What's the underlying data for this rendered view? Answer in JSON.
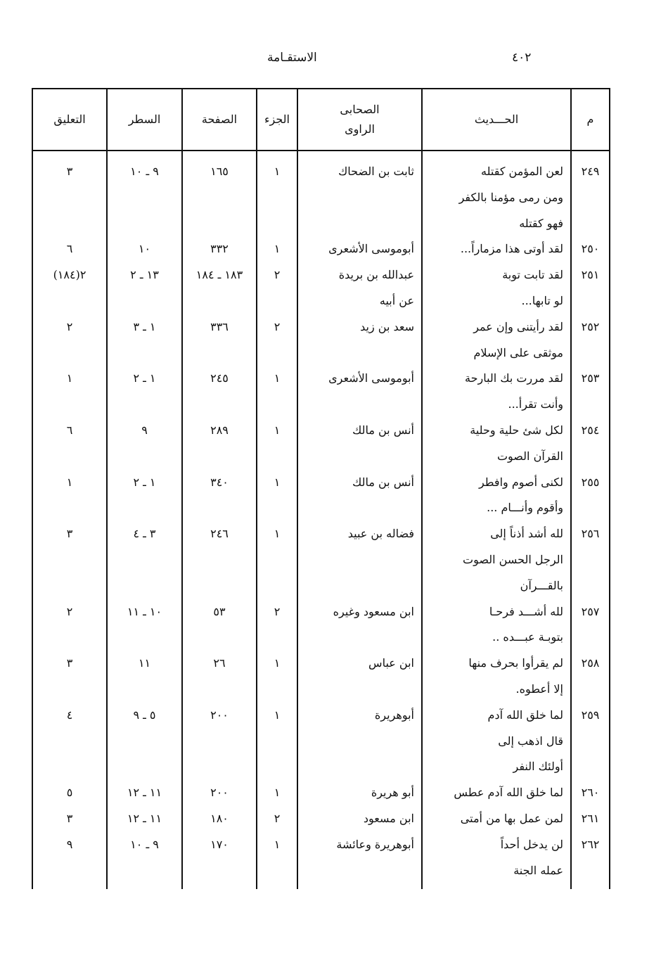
{
  "page": {
    "number": "٤٠٢",
    "title": "الاستقـامة"
  },
  "table": {
    "headers": [
      "م",
      "الحـــديث",
      "الصحابى الراوى",
      "الجزء",
      "الصفحة",
      "السطر",
      "التعليق"
    ],
    "rows": [
      {
        "num": "٢٤٩",
        "hadith": [
          "لعن المؤمن كقتله",
          "ومن رمى مؤمنا بالكفر",
          "فهو كقتله"
        ],
        "narrator": [
          "ثابت بن الضحاك"
        ],
        "part": "١",
        "page": "١٦٥",
        "line": "٩ ـ ١٠",
        "note": "٣"
      },
      {
        "num": "٢٥٠",
        "hadith": [
          "لقد أوتى هذا مزماراً..."
        ],
        "narrator": [
          "أبوموسى الأشعرى"
        ],
        "part": "١",
        "page": "٣٣٢",
        "line": "١٠",
        "note": "٦"
      },
      {
        "num": "٢٥١",
        "hadith": [
          "لقد تابت توبة",
          "لو تابها..."
        ],
        "narrator": [
          "عبدالله بن بريدة",
          "عن أبيه"
        ],
        "part": "٢",
        "page": "١٨٣ ـ ١٨٤",
        "line": "١٣ ـ ٢",
        "note": "٢(١٨٤)"
      },
      {
        "num": "٢٥٢",
        "hadith": [
          "لقد رأيتنى وإن عمر",
          "موثقى على الإسلام"
        ],
        "narrator": [
          "سعد بن زيد"
        ],
        "part": "٢",
        "page": "٣٣٦",
        "line": "١ ـ ٣",
        "note": "٢"
      },
      {
        "num": "٢٥٣",
        "hadith": [
          "لقد مررت بك البارحة",
          "وأنت تقرأ..."
        ],
        "narrator": [
          "أبوموسى الأشعرى"
        ],
        "part": "١",
        "page": "٢٤٥",
        "line": "١ ـ ٢",
        "note": "١"
      },
      {
        "num": "٢٥٤",
        "hadith": [
          "لكل شئ حلية وحلية",
          "القرآن الصوت"
        ],
        "narrator": [
          "أنس بن مالك"
        ],
        "part": "١",
        "page": "٢٨٩",
        "line": "٩",
        "note": "٦"
      },
      {
        "num": "٢٥٥",
        "hadith": [
          "لكنى أصوم وافطر",
          "وأقوم وأنـــام ..."
        ],
        "narrator": [
          "أنس بن مالك"
        ],
        "part": "١",
        "page": "٣٤٠",
        "line": "١ ـ ٢",
        "note": "١"
      },
      {
        "num": "٢٥٦",
        "hadith": [
          "لله أشد أذناً إلى",
          "الرجل الحسن الصوت",
          "بالقـــرآن"
        ],
        "narrator": [
          "فضاله بن عبيد"
        ],
        "part": "١",
        "page": "٢٤٦",
        "line": "٣ ـ ٤",
        "note": "٣"
      },
      {
        "num": "٢٥٧",
        "hadith": [
          "لله أشـــد فرحـا",
          "بتوبـة عبـــده .."
        ],
        "narrator": [
          "ابن مسعود وغيره"
        ],
        "part": "٢",
        "page": "٥٣",
        "line": "١٠ ـ ١١",
        "note": "٢"
      },
      {
        "num": "٢٥٨",
        "hadith": [
          "لم يقرأوا بحرف منها",
          "إلا أعطوه."
        ],
        "narrator": [
          "ابن عباس"
        ],
        "part": "١",
        "page": "٢٦",
        "line": "١١",
        "note": "٣"
      },
      {
        "num": "٢٥٩",
        "hadith": [
          "لما خلق الله آدم",
          "قال اذهب إلى",
          "أولئك النفر"
        ],
        "narrator": [
          "أبوهريرة"
        ],
        "part": "١",
        "page": "٢٠٠",
        "line": "٥ ـ ٩",
        "note": "٤"
      },
      {
        "num": "٢٦٠",
        "hadith": [
          "لما خلق الله آدم عطس"
        ],
        "narrator": [
          "أبو هريرة"
        ],
        "part": "١",
        "page": "٢٠٠",
        "line": "١١ ـ ١٢",
        "note": "٥"
      },
      {
        "num": "٢٦١",
        "hadith": [
          "لمن عمل بها من أمتى"
        ],
        "narrator": [
          "ابن مسعود"
        ],
        "part": "٢",
        "page": "١٨٠",
        "line": "١١ ـ ١٢",
        "note": "٣"
      },
      {
        "num": "٢٦٢",
        "hadith": [
          "لن يدخل أحداً",
          "عمله الجنة"
        ],
        "narrator": [
          "أبوهريرة وعائشة"
        ],
        "part": "١",
        "page": "١٧٠",
        "line": "٩ ـ ١٠",
        "note": "٩"
      }
    ]
  }
}
